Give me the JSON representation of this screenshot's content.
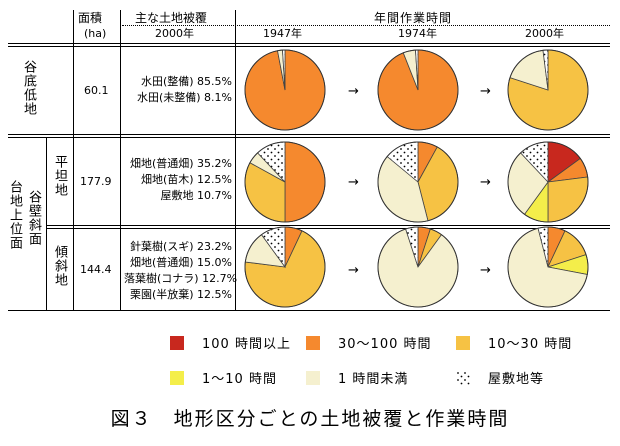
{
  "header": {
    "area_title": "面積",
    "area_unit": "(ha)",
    "cover_title": "主な土地被覆",
    "cover_year": "2000年",
    "work_title": "年間作業時間",
    "years": [
      "1947年",
      "1974年",
      "2000年"
    ]
  },
  "rows": [
    {
      "label": "谷底低地",
      "area": "60.1",
      "cover": [
        "水田(整備) 85.5%",
        "水田(未整備) 8.1%"
      ]
    },
    {
      "label": "平坦地",
      "area": "177.9",
      "cover": [
        "畑地(普通畑) 35.2%",
        "畑地(苗木) 12.5%",
        "屋敷地 10.7%"
      ]
    },
    {
      "label": "傾斜地",
      "area": "144.4",
      "cover": [
        "針葉樹(スギ) 23.2%",
        "畑地(普通畑) 15.0%",
        "落葉樹(コナラ) 12.7%",
        "栗園(半放棄) 12.5%"
      ]
    }
  ],
  "group_labels": {
    "upland": "台地上位面",
    "slope": "谷壁斜面"
  },
  "arrow_symbol": "→",
  "legend": [
    {
      "key": "gt100",
      "label": "100 時間以上",
      "color": "#c8281e"
    },
    {
      "key": "30to100",
      "label": "30～100 時間",
      "color": "#f5892e"
    },
    {
      "key": "10to30",
      "label": "10～30 時間",
      "color": "#f6c244"
    },
    {
      "key": "1to10",
      "label": "1～10 時間",
      "color": "#f4ee4a"
    },
    {
      "key": "lt1",
      "label": "1 時間未満",
      "color": "#f5f0cf"
    },
    {
      "key": "house",
      "label": "屋敷地等",
      "color": "dots"
    }
  ],
  "caption": "図３　地形区分ごとの土地被覆と作業時間",
  "chart_data": [
    {
      "type": "pie",
      "row": "谷底低地",
      "year": "1947年",
      "slices": [
        {
          "category": "30～100 時間",
          "value": 97
        },
        {
          "category": "1 時間未満",
          "value": 2
        },
        {
          "category": "屋敷地等",
          "value": 1
        }
      ]
    },
    {
      "type": "pie",
      "row": "谷底低地",
      "year": "1974年",
      "slices": [
        {
          "category": "30～100 時間",
          "value": 94
        },
        {
          "category": "1 時間未満",
          "value": 5
        },
        {
          "category": "屋敷地等",
          "value": 1
        }
      ]
    },
    {
      "type": "pie",
      "row": "谷底低地",
      "year": "2000年",
      "slices": [
        {
          "category": "10～30 時間",
          "value": 80
        },
        {
          "category": "1 時間未満",
          "value": 18
        },
        {
          "category": "屋敷地等",
          "value": 2
        }
      ]
    },
    {
      "type": "pie",
      "row": "平坦地",
      "year": "1947年",
      "slices": [
        {
          "category": "30～100 時間",
          "value": 50
        },
        {
          "category": "10～30 時間",
          "value": 33
        },
        {
          "category": "1 時間未満",
          "value": 5
        },
        {
          "category": "屋敷地等",
          "value": 12
        }
      ]
    },
    {
      "type": "pie",
      "row": "平坦地",
      "year": "1974年",
      "slices": [
        {
          "category": "30～100 時間",
          "value": 8
        },
        {
          "category": "10～30 時間",
          "value": 38
        },
        {
          "category": "1 時間未満",
          "value": 40
        },
        {
          "category": "屋敷地等",
          "value": 14
        }
      ]
    },
    {
      "type": "pie",
      "row": "平坦地",
      "year": "2000年",
      "slices": [
        {
          "category": "100 時間以上",
          "value": 15
        },
        {
          "category": "30～100 時間",
          "value": 8
        },
        {
          "category": "10～30 時間",
          "value": 27
        },
        {
          "category": "1～10 時間",
          "value": 10
        },
        {
          "category": "1 時間未満",
          "value": 28
        },
        {
          "category": "屋敷地等",
          "value": 12
        }
      ]
    },
    {
      "type": "pie",
      "row": "傾斜地",
      "year": "1947年",
      "slices": [
        {
          "category": "30～100 時間",
          "value": 7
        },
        {
          "category": "10～30 時間",
          "value": 70
        },
        {
          "category": "1 時間未満",
          "value": 13
        },
        {
          "category": "屋敷地等",
          "value": 10
        }
      ]
    },
    {
      "type": "pie",
      "row": "傾斜地",
      "year": "1974年",
      "slices": [
        {
          "category": "30～100 時間",
          "value": 5
        },
        {
          "category": "10～30 時間",
          "value": 5
        },
        {
          "category": "1 時間未満",
          "value": 85
        },
        {
          "category": "屋敷地等",
          "value": 5
        }
      ]
    },
    {
      "type": "pie",
      "row": "傾斜地",
      "year": "2000年",
      "slices": [
        {
          "category": "30～100 時間",
          "value": 7
        },
        {
          "category": "10～30 時間",
          "value": 13
        },
        {
          "category": "1～10 時間",
          "value": 8
        },
        {
          "category": "1 時間未満",
          "value": 68
        },
        {
          "category": "屋敷地等",
          "value": 4
        }
      ]
    }
  ]
}
